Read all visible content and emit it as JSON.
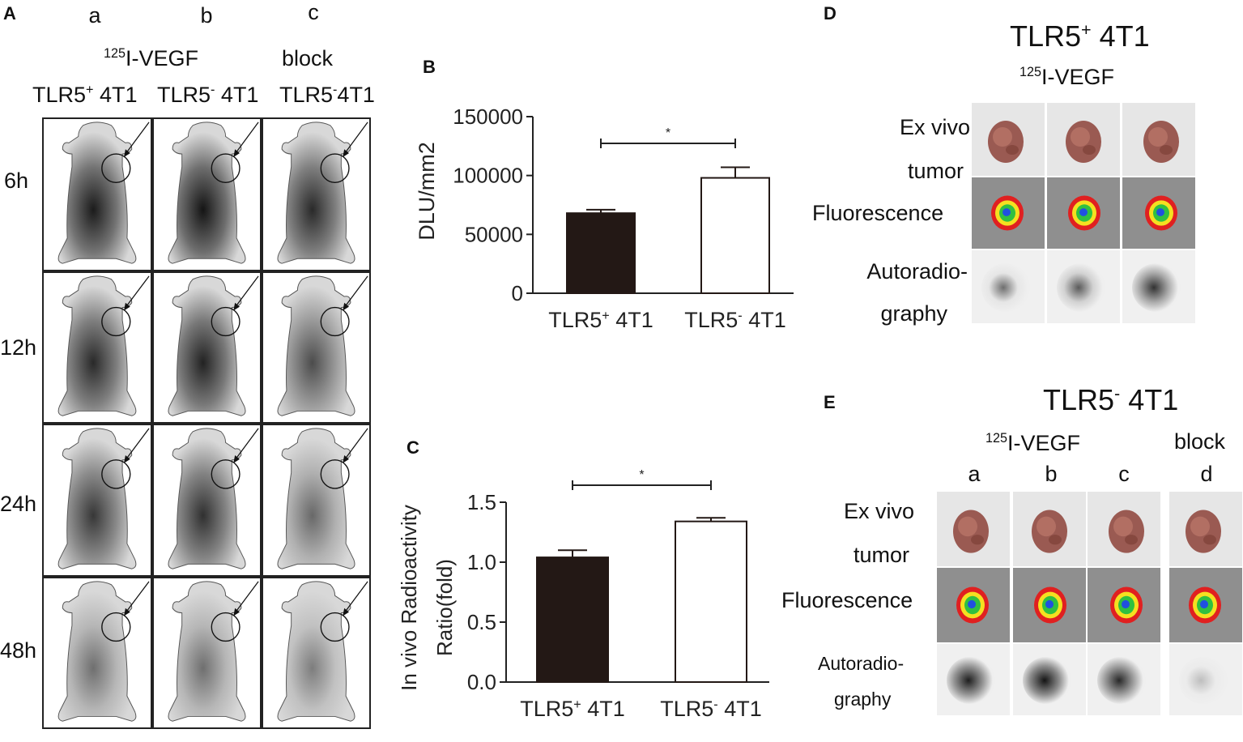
{
  "panel_a": {
    "label": "A",
    "columns": [
      {
        "letter": "a",
        "probe": "",
        "group_prefix": "TLR5",
        "group_sup": "+",
        "group_suffix": " 4T1"
      },
      {
        "letter": "b",
        "probe": "",
        "group_prefix": "TLR5",
        "group_sup": "-",
        "group_suffix": " 4T1"
      },
      {
        "letter": "c",
        "probe": "block",
        "group_prefix": "TLR5",
        "group_sup": "-",
        "group_suffix": "4T1"
      }
    ],
    "probe_sup": "125",
    "probe_text": "I-VEGF",
    "rows": [
      "6h",
      "12h",
      "24h",
      "48h"
    ],
    "intensity": [
      [
        0.95,
        1.0,
        0.85
      ],
      [
        0.85,
        0.9,
        0.6
      ],
      [
        0.75,
        0.8,
        0.4
      ],
      [
        0.35,
        0.35,
        0.25
      ]
    ]
  },
  "panel_b": {
    "label": "B",
    "chart_data": {
      "type": "bar",
      "categories": [
        "TLR5+ 4T1",
        "TLR5- 4T1"
      ],
      "category_parts": [
        {
          "prefix": "TLR5",
          "sup": "+",
          "suffix": " 4T1"
        },
        {
          "prefix": "TLR5",
          "sup": "-",
          "suffix": " 4T1"
        }
      ],
      "values": [
        68000,
        98000
      ],
      "errors": [
        3000,
        9000
      ],
      "fills": [
        "#231815",
        "#ffffff"
      ],
      "ylabel": "DLU/mm2",
      "ylim": [
        0,
        150000
      ],
      "yticks": [
        0,
        50000,
        100000,
        150000
      ],
      "ytick_labels": [
        "0",
        "50000",
        "100000",
        "150000"
      ],
      "significance": "*"
    }
  },
  "panel_c": {
    "label": "C",
    "chart_data": {
      "type": "bar",
      "categories": [
        "TLR5+ 4T1",
        "TLR5- 4T1"
      ],
      "category_parts": [
        {
          "prefix": "TLR5",
          "sup": "+",
          "suffix": " 4T1"
        },
        {
          "prefix": "TLR5",
          "sup": "-",
          "suffix": " 4T1"
        }
      ],
      "values": [
        1.04,
        1.34
      ],
      "errors": [
        0.06,
        0.03
      ],
      "fills": [
        "#231815",
        "#ffffff"
      ],
      "ylabel_line1": "In vivo Radioactivity",
      "ylabel_line2": "Ratio(fold)",
      "ylim": [
        0,
        1.5
      ],
      "yticks": [
        0,
        0.5,
        1.0,
        1.5
      ],
      "ytick_labels": [
        "0.0",
        "0.5",
        "1.0",
        "1.5"
      ],
      "significance": "*"
    }
  },
  "panel_d": {
    "label": "D",
    "title_prefix": "TLR5",
    "title_sup": "+",
    "title_suffix": " 4T1",
    "probe_sup": "125",
    "probe_text": "I-VEGF",
    "row_ex_vivo_1": "Ex vivo",
    "row_ex_vivo_2": "tumor",
    "row_fluor": "Fluorescence",
    "row_auto_1": "Autoradio-",
    "row_auto_2": "graphy",
    "samples": 3
  },
  "panel_e": {
    "label": "E",
    "title_prefix": "TLR5",
    "title_sup": "-",
    "title_suffix": " 4T1",
    "probe_sup": "125",
    "probe_text": "I-VEGF",
    "block_text": "block",
    "columns": [
      "a",
      "b",
      "c",
      "d"
    ],
    "row_ex_vivo_1": "Ex vivo",
    "row_ex_vivo_2": "tumor",
    "row_fluor": "Fluorescence",
    "row_auto_1": "Autoradio-",
    "row_auto_2": "graphy"
  }
}
